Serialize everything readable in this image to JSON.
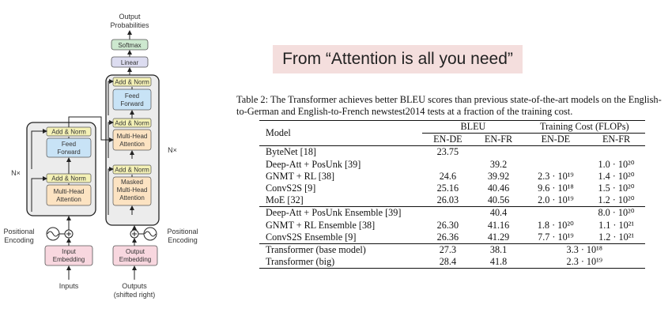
{
  "banner": "From “Attention is all you need”",
  "caption": "Table 2: The Transformer achieves better BLEU scores than previous state-of-the-art models on the English-to-German and English-to-French newstest2014 tests at a fraction of the training cost.",
  "diagram": {
    "output_probabilities_1": "Output",
    "output_probabilities_2": "Probabilities",
    "softmax": "Softmax",
    "linear": "Linear",
    "add_norm": "Add & Norm",
    "feed_forward_1": "Feed",
    "feed_forward_2": "Forward",
    "multi_head_1": "Multi-Head",
    "attention": "Attention",
    "masked_1": "Masked",
    "nx": "N×",
    "positional_1": "Positional",
    "positional_2": "Encoding",
    "input_embedding_1": "Input",
    "embedding": "Embedding",
    "output_embedding_1": "Output",
    "inputs": "Inputs",
    "outputs_1": "Outputs",
    "outputs_2": "(shifted right)"
  },
  "table": {
    "headers": {
      "model": "Model",
      "bleu": "BLEU",
      "cost": "Training Cost (FLOPs)",
      "en_de": "EN-DE",
      "en_fr": "EN-FR"
    },
    "rows": [
      {
        "model": "ByteNet [18]",
        "bleu_de": "23.75",
        "bleu_fr": "",
        "cost_de": "",
        "cost_fr": ""
      },
      {
        "model": "Deep-Att + PosUnk [39]",
        "bleu_de": "",
        "bleu_fr": "39.2",
        "cost_de": "",
        "cost_fr": "1.0 · 10²⁰"
      },
      {
        "model": "GNMT + RL [38]",
        "bleu_de": "24.6",
        "bleu_fr": "39.92",
        "cost_de": "2.3 · 10¹⁹",
        "cost_fr": "1.4 · 10²⁰"
      },
      {
        "model": "ConvS2S [9]",
        "bleu_de": "25.16",
        "bleu_fr": "40.46",
        "cost_de": "9.6 · 10¹⁸",
        "cost_fr": "1.5 · 10²⁰"
      },
      {
        "model": "MoE [32]",
        "bleu_de": "26.03",
        "bleu_fr": "40.56",
        "cost_de": "2.0 · 10¹⁹",
        "cost_fr": "1.2 · 10²⁰"
      },
      {
        "model": "Deep-Att + PosUnk Ensemble [39]",
        "bleu_de": "",
        "bleu_fr": "40.4",
        "cost_de": "",
        "cost_fr": "8.0 · 10²⁰"
      },
      {
        "model": "GNMT + RL Ensemble [38]",
        "bleu_de": "26.30",
        "bleu_fr": "41.16",
        "cost_de": "1.8 · 10²⁰",
        "cost_fr": "1.1 · 10²¹"
      },
      {
        "model": "ConvS2S Ensemble [9]",
        "bleu_de": "26.36",
        "bleu_fr": "41.29",
        "cost_de": "7.7 · 10¹⁹",
        "cost_fr": "1.2 · 10²¹"
      },
      {
        "model": "Transformer (base model)",
        "bleu_de": "27.3",
        "bleu_fr": "38.1",
        "cost_both": "3.3 · 10¹⁸"
      },
      {
        "model": "Transformer (big)",
        "bleu_de": "28.4",
        "bleu_fr": "41.8",
        "cost_both": "2.3 · 10¹⁹"
      }
    ]
  },
  "colors": {
    "banner_bg": "#f4dedd",
    "attention_fill": "#fce3c2",
    "feed_forward_fill": "#c8e3f6",
    "add_norm_fill": "#f4f1b6",
    "embedding_fill": "#f8d7df",
    "linear_fill": "#dcdcf0",
    "softmax_fill": "#cde8cf",
    "stack_bg": "#ececec"
  }
}
